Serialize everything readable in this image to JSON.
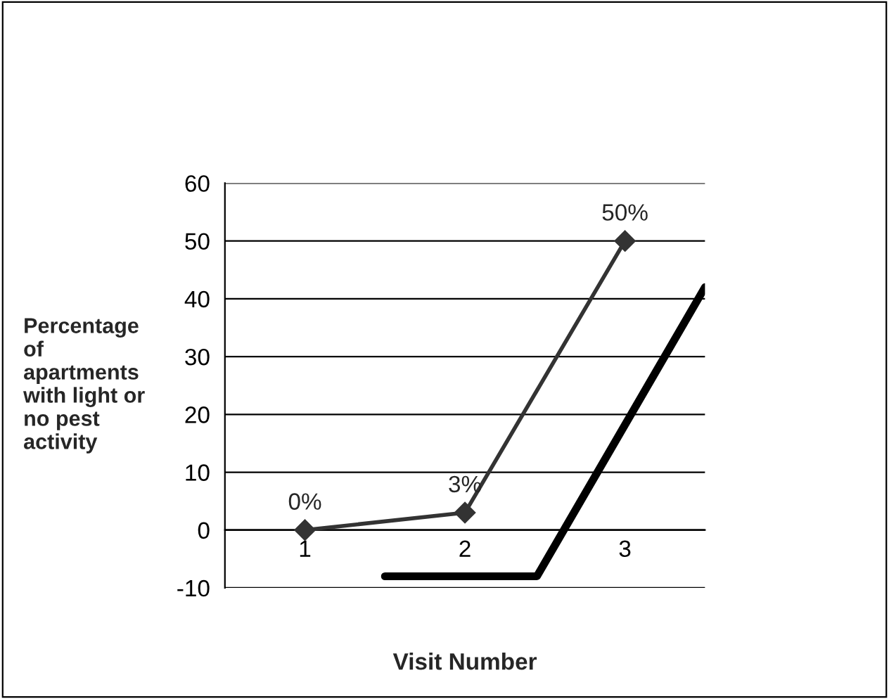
{
  "chart_data": {
    "type": "line",
    "xlabel": "Visit Number",
    "ylabel": "Percentage\nof\napartments\nwith light or\nno pest\nactivity",
    "x": [
      1,
      2,
      3
    ],
    "xlim": [
      0.5,
      3.5
    ],
    "xticks": [
      1,
      2,
      3
    ],
    "ylim": [
      -10,
      60
    ],
    "yticks": [
      -10,
      0,
      10,
      20,
      30,
      40,
      50,
      60
    ],
    "grid": "y",
    "series": [
      {
        "color": "#333333",
        "values": [
          0,
          3,
          50
        ],
        "marker": "diamond",
        "value_labels": [
          "0%",
          "3%",
          "50%"
        ]
      },
      {
        "color": "#000000",
        "x": [
          1.5,
          2.45,
          3.5
        ],
        "values": [
          -8,
          -8,
          42
        ],
        "marker": "none"
      }
    ]
  }
}
